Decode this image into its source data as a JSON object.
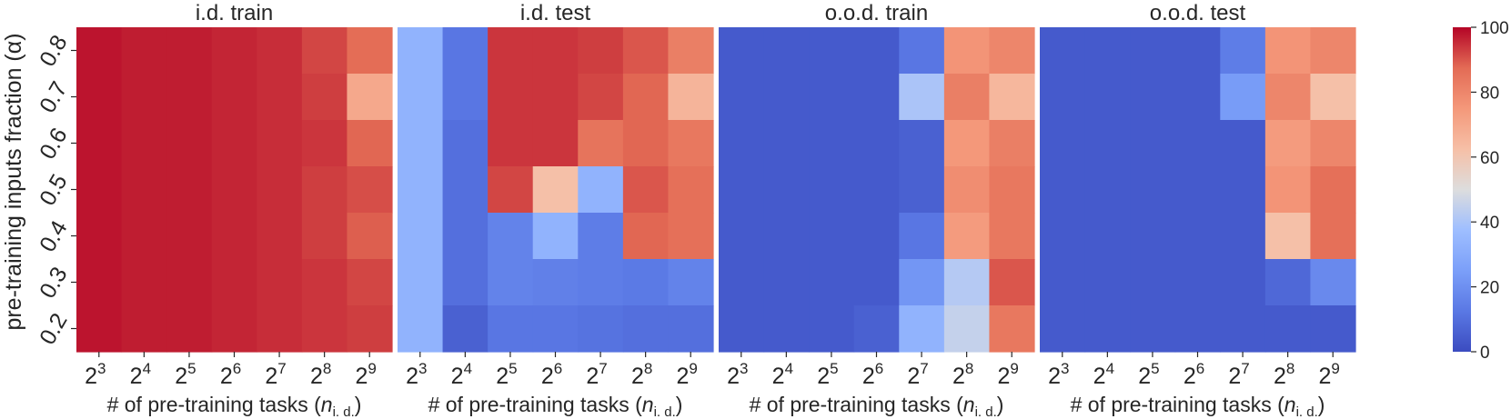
{
  "colorbar": {
    "ticks": [
      "100",
      "80",
      "60",
      "40",
      "20",
      "0"
    ],
    "vmin": 0,
    "vmax": 100,
    "colormap": "coolwarm",
    "colors": {
      "low": "#3b4cc0",
      "mid": "#dddddd",
      "high": "#b40426"
    }
  },
  "ylabel": "pre-training inputs fraction (α)",
  "xlabel_text": "# of pre-training tasks (",
  "xlabel_math": "n",
  "xlabel_sub": "i. d.",
  "xlabel_close": ")",
  "chart_data": [
    {
      "type": "heatmap",
      "title": "i.d. train",
      "x_base": "2",
      "x_exponents": [
        "3",
        "4",
        "5",
        "6",
        "7",
        "8",
        "9"
      ],
      "y": [
        "0.8",
        "0.7",
        "0.6",
        "0.5",
        "0.4",
        "0.3",
        "0.2"
      ],
      "values": [
        [
          98,
          97,
          97,
          96,
          95,
          92,
          87
        ],
        [
          98,
          97,
          97,
          96,
          95,
          93,
          70
        ],
        [
          98,
          97,
          97,
          96,
          95,
          94,
          88
        ],
        [
          98,
          97,
          97,
          96,
          95,
          93,
          91
        ],
        [
          98,
          97,
          97,
          96,
          95,
          93,
          89
        ],
        [
          98,
          97,
          97,
          96,
          95,
          94,
          92
        ],
        [
          98,
          97,
          97,
          96,
          95,
          94,
          93
        ]
      ]
    },
    {
      "type": "heatmap",
      "title": "i.d. test",
      "x_base": "2",
      "x_exponents": [
        "3",
        "4",
        "5",
        "6",
        "7",
        "8",
        "9"
      ],
      "y": [
        "0.8",
        "0.7",
        "0.6",
        "0.5",
        "0.4",
        "0.3",
        "0.2"
      ],
      "values": [
        [
          33,
          12,
          94,
          94,
          93,
          90,
          82
        ],
        [
          33,
          12,
          94,
          94,
          92,
          88,
          66
        ],
        [
          33,
          10,
          94,
          94,
          85,
          88,
          84
        ],
        [
          33,
          10,
          92,
          62,
          33,
          90,
          86
        ],
        [
          33,
          10,
          16,
          33,
          14,
          88,
          86
        ],
        [
          33,
          10,
          16,
          15,
          14,
          13,
          16
        ],
        [
          33,
          6,
          12,
          12,
          11,
          10,
          10
        ]
      ]
    },
    {
      "type": "heatmap",
      "title": "o.o.d. train",
      "x_base": "2",
      "x_exponents": [
        "3",
        "4",
        "5",
        "6",
        "7",
        "8",
        "9"
      ],
      "y": [
        "0.8",
        "0.7",
        "0.6",
        "0.5",
        "0.4",
        "0.3",
        "0.2"
      ],
      "values": [
        [
          4,
          4,
          4,
          4,
          12,
          76,
          80
        ],
        [
          4,
          4,
          4,
          4,
          40,
          82,
          65
        ],
        [
          4,
          4,
          4,
          4,
          6,
          75,
          82
        ],
        [
          4,
          4,
          4,
          4,
          6,
          78,
          84
        ],
        [
          4,
          4,
          4,
          4,
          12,
          74,
          84
        ],
        [
          4,
          4,
          4,
          4,
          22,
          42,
          90
        ],
        [
          4,
          4,
          4,
          6,
          33,
          45,
          84
        ]
      ]
    },
    {
      "type": "heatmap",
      "title": "o.o.d. test",
      "x_base": "2",
      "x_exponents": [
        "3",
        "4",
        "5",
        "6",
        "7",
        "8",
        "9"
      ],
      "y": [
        "0.8",
        "0.7",
        "0.6",
        "0.5",
        "0.4",
        "0.3",
        "0.2"
      ],
      "values": [
        [
          4,
          4,
          4,
          4,
          14,
          76,
          80
        ],
        [
          4,
          4,
          4,
          4,
          24,
          80,
          62
        ],
        [
          4,
          4,
          4,
          4,
          4,
          74,
          80
        ],
        [
          4,
          4,
          4,
          4,
          4,
          76,
          86
        ],
        [
          4,
          4,
          4,
          4,
          4,
          62,
          86
        ],
        [
          4,
          4,
          4,
          4,
          4,
          8,
          18
        ],
        [
          4,
          4,
          4,
          4,
          4,
          4,
          4
        ]
      ]
    }
  ]
}
